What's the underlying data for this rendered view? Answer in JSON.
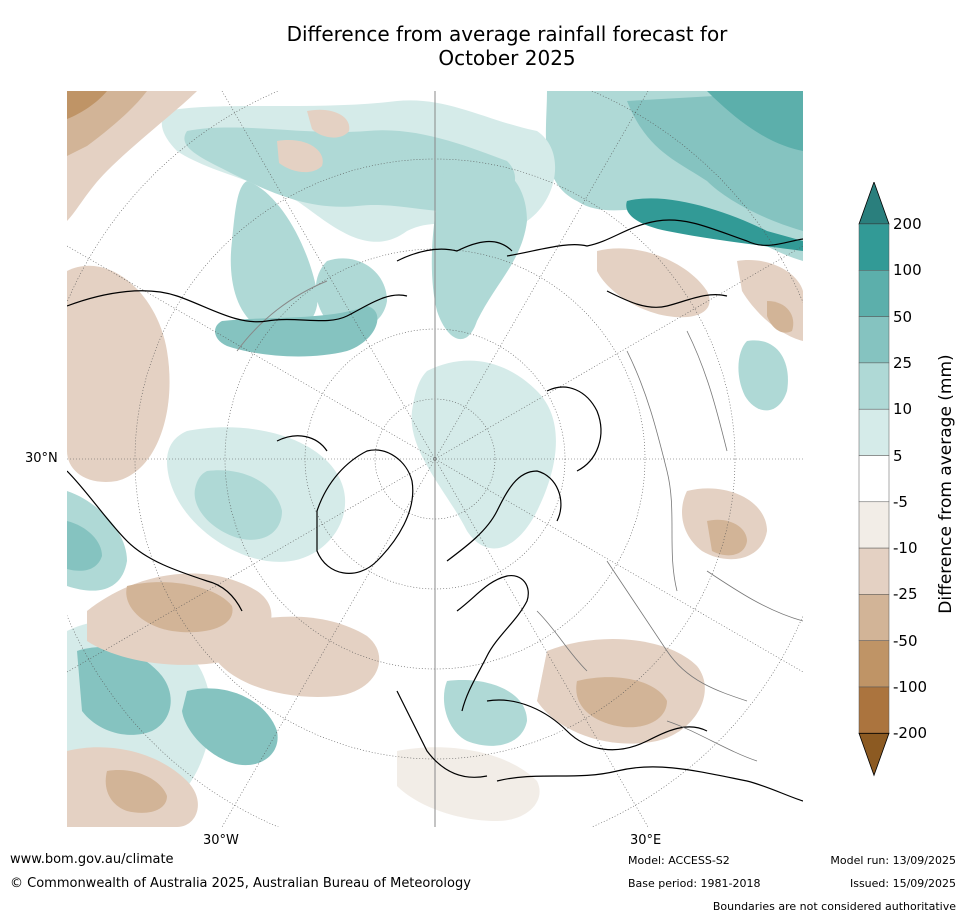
{
  "title_line1": "Difference from average rainfall forecast for",
  "title_line2": "October 2025",
  "map_labels": {
    "lat_30n": "30°N",
    "lon_30w": "30°W",
    "lon_30e": "30°E"
  },
  "colorbar": {
    "title": "Difference from average (mm)",
    "levels": [
      "200",
      "100",
      "50",
      "25",
      "10",
      "5",
      "-5",
      "-10",
      "-25",
      "-50",
      "-100",
      "-200"
    ],
    "colors": [
      "#2a7f7d",
      "#329a96",
      "#5cafab",
      "#85c3c0",
      "#afd9d6",
      "#d5ebe9",
      "#ffffff",
      "#f2ede7",
      "#e4d1c3",
      "#d2b497",
      "#bf9466",
      "#ab743e",
      "#8c5a22"
    ]
  },
  "footer": {
    "website": "www.bom.gov.au/climate",
    "copyright": "© Commonwealth of Australia 2025, Australian Bureau of Meteorology",
    "model": "Model: ACCESS-S2",
    "base_period": "Base period: 1981-2018",
    "model_run": "Model run: 13/09/2025",
    "issued": "Issued: 15/09/2025",
    "boundaries": "Boundaries are not considered authoritative"
  }
}
